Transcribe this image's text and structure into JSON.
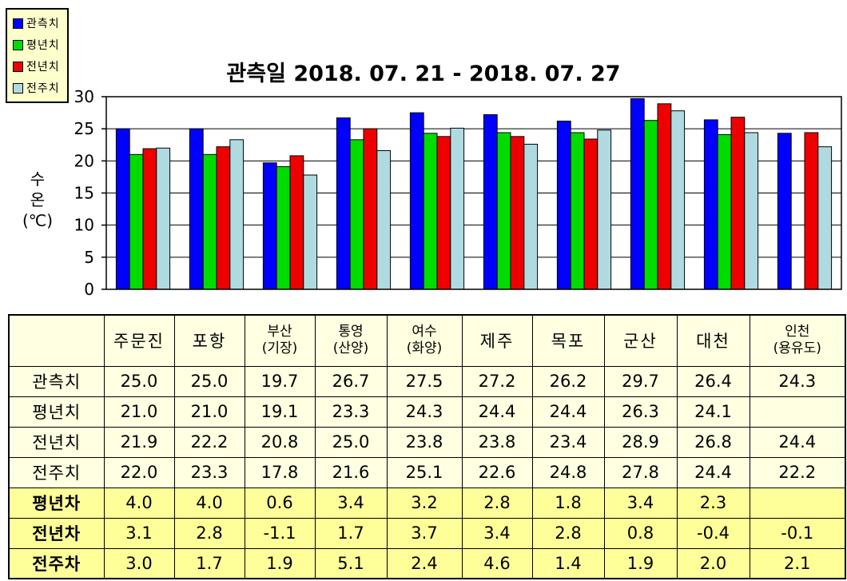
{
  "page": {
    "background": "#FFFFFF"
  },
  "chart_data": {
    "type": "bar",
    "title": "관측일 2018. 07. 21 - 2018. 07. 27",
    "ylabel": "수온(℃)",
    "ylabel_lines": [
      "수",
      "온",
      "(℃)"
    ],
    "ylim": [
      0,
      30
    ],
    "ytick_step": 5,
    "yticks": [
      0,
      5,
      10,
      15,
      20,
      25,
      30
    ],
    "grid": true,
    "legend_position": "top-left",
    "plot_background": "#FFFFFF",
    "categories": [
      "주문진",
      "포항",
      "부산(기장)",
      "통영(산양)",
      "여수(화양)",
      "제주",
      "목포",
      "군산",
      "대천",
      "인천(용유도)"
    ],
    "series": [
      {
        "name": "관측치",
        "color": "#0000FF",
        "values": [
          25.0,
          25.0,
          19.7,
          26.7,
          27.5,
          27.2,
          26.2,
          29.7,
          26.4,
          24.3
        ]
      },
      {
        "name": "평년치",
        "color": "#00DC00",
        "values": [
          21.0,
          21.0,
          19.1,
          23.3,
          24.3,
          24.4,
          24.4,
          26.3,
          24.1,
          null
        ]
      },
      {
        "name": "전년치",
        "color": "#EE0000",
        "values": [
          21.9,
          22.2,
          20.8,
          25.0,
          23.8,
          23.8,
          23.4,
          28.9,
          26.8,
          24.4
        ]
      },
      {
        "name": "전주치",
        "color": "#AFDBE0",
        "values": [
          22.0,
          23.3,
          17.8,
          21.6,
          25.1,
          22.6,
          24.8,
          27.8,
          24.4,
          22.2
        ]
      }
    ]
  },
  "table": {
    "corner_label": "",
    "headers": [
      [
        "주문진"
      ],
      [
        "포항"
      ],
      [
        "부산",
        "(기장)"
      ],
      [
        "통영",
        "(산양)"
      ],
      [
        "여수",
        "(화양)"
      ],
      [
        "제주"
      ],
      [
        "목포"
      ],
      [
        "군산"
      ],
      [
        "대천"
      ],
      [
        "인천",
        "(용유도)"
      ]
    ],
    "rows": [
      {
        "label": "관측치",
        "bold": false,
        "tone": "light",
        "values": [
          "25.0",
          "25.0",
          "19.7",
          "26.7",
          "27.5",
          "27.2",
          "26.2",
          "29.7",
          "26.4",
          "24.3"
        ]
      },
      {
        "label": "평년치",
        "bold": false,
        "tone": "light",
        "values": [
          "21.0",
          "21.0",
          "19.1",
          "23.3",
          "24.3",
          "24.4",
          "24.4",
          "26.3",
          "24.1",
          ""
        ]
      },
      {
        "label": "전년치",
        "bold": false,
        "tone": "light",
        "values": [
          "21.9",
          "22.2",
          "20.8",
          "25.0",
          "23.8",
          "23.8",
          "23.4",
          "28.9",
          "26.8",
          "24.4"
        ]
      },
      {
        "label": "전주치",
        "bold": false,
        "tone": "light",
        "values": [
          "22.0",
          "23.3",
          "17.8",
          "21.6",
          "25.1",
          "22.6",
          "24.8",
          "27.8",
          "24.4",
          "22.2"
        ]
      },
      {
        "label": "평년차",
        "bold": true,
        "tone": "strong",
        "values": [
          "4.0",
          "4.0",
          "0.6",
          "3.4",
          "3.2",
          "2.8",
          "1.8",
          "3.4",
          "2.3",
          ""
        ]
      },
      {
        "label": "전년차",
        "bold": true,
        "tone": "strong",
        "values": [
          "3.1",
          "2.8",
          "-1.1",
          "1.7",
          "3.7",
          "3.4",
          "2.8",
          "0.8",
          "-0.4",
          "-0.1"
        ]
      },
      {
        "label": "전주차",
        "bold": true,
        "tone": "strong",
        "values": [
          "3.0",
          "1.7",
          "1.9",
          "5.1",
          "2.4",
          "4.6",
          "1.4",
          "1.9",
          "2.0",
          "2.1"
        ]
      }
    ]
  },
  "colors": {
    "legend_background": "#FFFFCC",
    "table_light_row": "#FFFFE1",
    "table_strong_row": "#FFFF99",
    "axis": "#000000"
  }
}
